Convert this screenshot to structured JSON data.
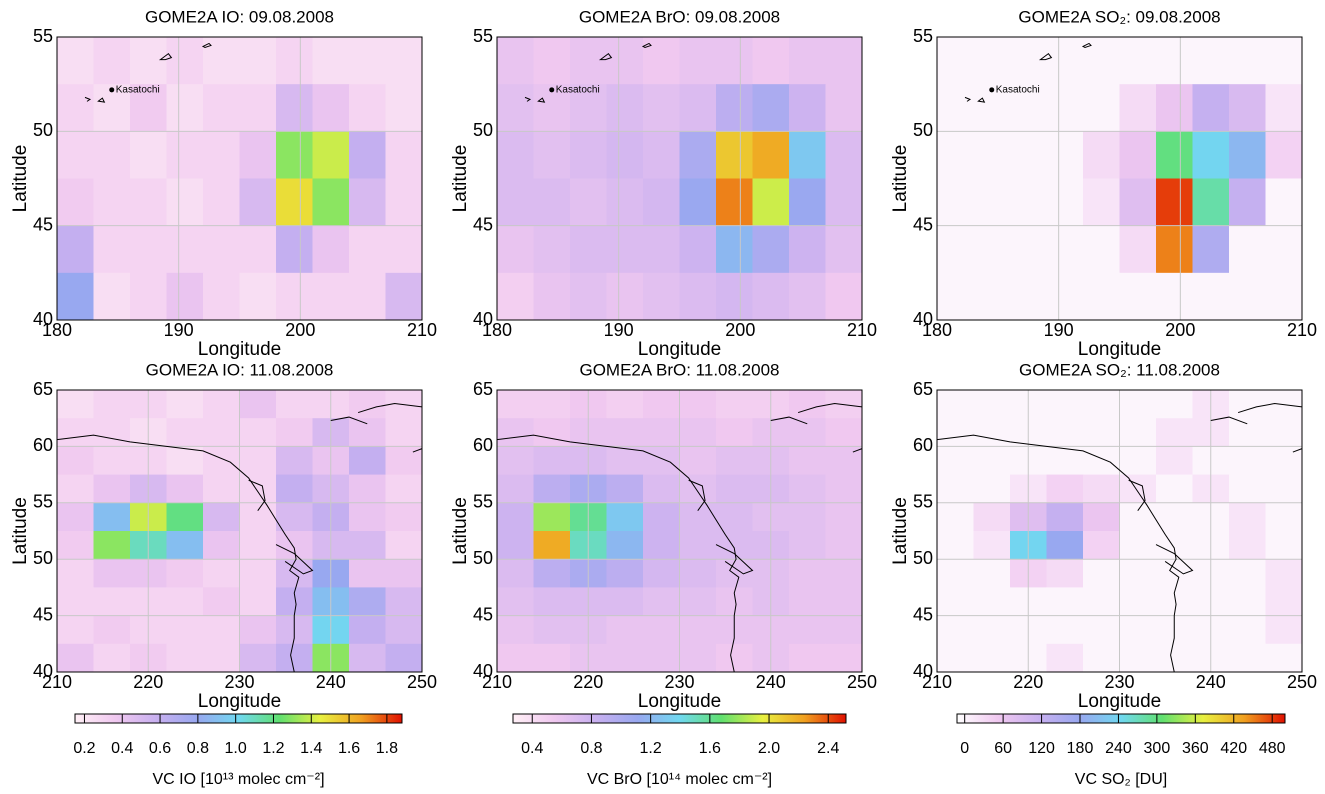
{
  "chart_data": [
    {
      "type": "heatmap",
      "title": "GOME2A IO: 09.08.2008",
      "xlabel": "Longitude",
      "ylabel": "Latitude",
      "xlim": [
        180,
        210
      ],
      "ylim": [
        40,
        55
      ],
      "xticks": [
        180,
        190,
        200,
        210
      ],
      "yticks": [
        40,
        45,
        50,
        55
      ],
      "grid": true,
      "annotations": [
        {
          "text": "Kasatochi",
          "x": 184.5,
          "y": 52.2
        }
      ],
      "z": [
        [
          0.25,
          0.3,
          0.25,
          0.3,
          0.25,
          0.25,
          0.3,
          0.25,
          0.25,
          0.25
        ],
        [
          0.3,
          0.25,
          0.35,
          0.25,
          0.3,
          0.3,
          0.5,
          0.4,
          0.3,
          0.25
        ],
        [
          0.3,
          0.3,
          0.25,
          0.3,
          0.3,
          0.4,
          1.3,
          1.4,
          0.6,
          0.3
        ],
        [
          0.35,
          0.3,
          0.3,
          0.25,
          0.3,
          0.5,
          1.5,
          1.3,
          0.5,
          0.3
        ],
        [
          0.6,
          0.3,
          0.3,
          0.3,
          0.3,
          0.3,
          0.6,
          0.4,
          0.3,
          0.3
        ],
        [
          0.8,
          0.25,
          0.3,
          0.4,
          0.3,
          0.25,
          0.3,
          0.3,
          0.3,
          0.5
        ]
      ]
    },
    {
      "type": "heatmap",
      "title": "GOME2A BrO: 09.08.2008",
      "xlabel": "Longitude",
      "ylabel": "Latitude",
      "xlim": [
        180,
        210
      ],
      "ylim": [
        40,
        55
      ],
      "xticks": [
        180,
        190,
        200,
        210
      ],
      "yticks": [
        40,
        45,
        50,
        55
      ],
      "grid": true,
      "annotations": [
        {
          "text": "Kasatochi",
          "x": 184.5,
          "y": 52.2
        }
      ],
      "z": [
        [
          0.6,
          0.55,
          0.6,
          0.6,
          0.55,
          0.6,
          0.6,
          0.55,
          0.6,
          0.6
        ],
        [
          0.65,
          0.6,
          0.65,
          0.7,
          0.65,
          0.7,
          0.9,
          1.0,
          0.8,
          0.6
        ],
        [
          0.7,
          0.65,
          0.7,
          0.75,
          0.7,
          1.0,
          2.1,
          2.2,
          1.3,
          0.7
        ],
        [
          0.7,
          0.7,
          0.65,
          0.7,
          0.75,
          1.1,
          2.3,
          1.9,
          1.1,
          0.7
        ],
        [
          0.6,
          0.65,
          0.7,
          0.7,
          0.7,
          0.8,
          1.2,
          1.0,
          0.8,
          0.65
        ],
        [
          0.5,
          0.6,
          0.65,
          0.6,
          0.65,
          0.7,
          0.75,
          0.7,
          0.65,
          0.55
        ]
      ]
    },
    {
      "type": "heatmap",
      "title": "GOME2A SO₂: 09.08.2008",
      "xlabel": "Longitude",
      "ylabel": "Latitude",
      "xlim": [
        180,
        210
      ],
      "ylim": [
        40,
        55
      ],
      "xticks": [
        180,
        190,
        200,
        210
      ],
      "yticks": [
        40,
        45,
        50,
        55
      ],
      "grid": true,
      "annotations": [
        {
          "text": "Kasatochi",
          "x": 184.5,
          "y": 52.2
        }
      ],
      "z": [
        [
          0,
          0,
          0,
          0,
          0,
          0,
          0,
          0,
          0,
          0
        ],
        [
          0,
          0,
          0,
          0,
          0,
          30,
          60,
          120,
          90,
          20
        ],
        [
          0,
          0,
          0,
          0,
          30,
          60,
          300,
          240,
          200,
          40
        ],
        [
          0,
          0,
          0,
          0,
          20,
          80,
          480,
          280,
          120,
          0
        ],
        [
          0,
          0,
          0,
          0,
          0,
          30,
          450,
          150,
          0,
          0
        ],
        [
          0,
          0,
          0,
          0,
          0,
          0,
          0,
          0,
          0,
          0
        ]
      ]
    },
    {
      "type": "heatmap",
      "title": "GOME2A IO: 11.08.2008",
      "xlabel": "Longitude",
      "ylabel": "Latitude",
      "xlim": [
        210,
        250
      ],
      "ylim": [
        40,
        65
      ],
      "xticks": [
        210,
        220,
        230,
        240,
        250
      ],
      "yticks": [
        40,
        45,
        50,
        55,
        60,
        65
      ],
      "grid": true,
      "colorbar": {
        "label": "VC IO [10¹³ molec cm⁻²]",
        "lim": [
          0.15,
          1.88
        ],
        "ticks": [
          0.2,
          0.4,
          0.6,
          0.8,
          {
            "value": 1,
            "label": "1.0"
          },
          1.2,
          1.4,
          1.6,
          1.8
        ],
        "colormap": [
          "#fff0f6",
          "#f0c8f0",
          "#c8b0f0",
          "#98a8f0",
          "#70d8f0",
          "#60e070",
          "#e8f040",
          "#f0a020",
          "#e01000"
        ]
      },
      "z": [
        [
          0.25,
          0.3,
          0.3,
          0.25,
          0.3,
          0.4,
          0.3,
          0.3,
          0.35,
          0.3
        ],
        [
          0.3,
          0.3,
          0.25,
          0.3,
          0.3,
          0.3,
          0.35,
          0.5,
          0.4,
          0.3
        ],
        [
          0.35,
          0.3,
          0.3,
          0.25,
          0.3,
          0.3,
          0.5,
          0.4,
          0.6,
          0.35
        ],
        [
          0.3,
          0.4,
          0.5,
          0.4,
          0.3,
          0.3,
          0.6,
          0.5,
          0.4,
          0.3
        ],
        [
          0.4,
          0.9,
          1.4,
          1.2,
          0.5,
          0.3,
          0.5,
          0.6,
          0.4,
          0.35
        ],
        [
          0.35,
          1.3,
          1.1,
          0.9,
          0.4,
          0.3,
          0.4,
          0.5,
          0.5,
          0.3
        ],
        [
          0.3,
          0.4,
          0.4,
          0.35,
          0.3,
          0.3,
          0.5,
          0.8,
          0.4,
          0.4
        ],
        [
          0.3,
          0.3,
          0.3,
          0.3,
          0.35,
          0.3,
          0.6,
          0.9,
          0.7,
          0.5
        ],
        [
          0.3,
          0.35,
          0.3,
          0.3,
          0.3,
          0.4,
          0.5,
          1.0,
          0.6,
          0.5
        ],
        [
          0.4,
          0.3,
          0.35,
          0.3,
          0.3,
          0.5,
          0.6,
          1.3,
          0.5,
          0.6
        ]
      ]
    },
    {
      "type": "heatmap",
      "title": "GOME2A BrO: 11.08.2008",
      "xlabel": "Longitude",
      "ylabel": "Latitude",
      "xlim": [
        210,
        250
      ],
      "ylim": [
        40,
        65
      ],
      "xticks": [
        210,
        220,
        230,
        240,
        250
      ],
      "yticks": [
        40,
        45,
        50,
        55,
        60,
        65
      ],
      "grid": true,
      "colorbar": {
        "label": "VC BrO [10¹⁴ molec cm⁻²]",
        "lim": [
          0.27,
          2.52
        ],
        "ticks": [
          0.4,
          0.8,
          1.2,
          1.6,
          {
            "value": 2,
            "label": "2.0"
          },
          2.4
        ],
        "colormap": [
          "#fff0f6",
          "#f0c8f0",
          "#c8b0f0",
          "#98a8f0",
          "#70d8f0",
          "#60e070",
          "#e8f040",
          "#f0a020",
          "#e01000"
        ]
      },
      "z": [
        [
          0.5,
          0.5,
          0.55,
          0.5,
          0.55,
          0.55,
          0.5,
          0.5,
          0.55,
          0.5
        ],
        [
          0.6,
          0.55,
          0.6,
          0.6,
          0.6,
          0.6,
          0.55,
          0.6,
          0.6,
          0.55
        ],
        [
          0.65,
          0.7,
          0.7,
          0.65,
          0.65,
          0.6,
          0.65,
          0.65,
          0.6,
          0.6
        ],
        [
          0.7,
          0.9,
          1.0,
          0.9,
          0.7,
          0.65,
          0.7,
          0.7,
          0.65,
          0.6
        ],
        [
          0.8,
          1.8,
          1.6,
          1.3,
          0.8,
          0.7,
          0.7,
          0.65,
          0.65,
          0.6
        ],
        [
          0.8,
          2.2,
          1.5,
          1.2,
          0.8,
          0.7,
          0.7,
          0.7,
          0.65,
          0.6
        ],
        [
          0.7,
          0.9,
          1.0,
          0.9,
          0.75,
          0.7,
          0.65,
          0.65,
          0.6,
          0.6
        ],
        [
          0.65,
          0.7,
          0.7,
          0.7,
          0.65,
          0.65,
          0.6,
          0.65,
          0.6,
          0.6
        ],
        [
          0.6,
          0.65,
          0.65,
          0.6,
          0.6,
          0.6,
          0.6,
          0.6,
          0.6,
          0.6
        ],
        [
          0.55,
          0.55,
          0.6,
          0.6,
          0.6,
          0.6,
          0.55,
          0.6,
          0.55,
          0.55
        ]
      ]
    },
    {
      "type": "heatmap",
      "title": "GOME2A SO₂: 11.08.2008",
      "xlabel": "Longitude",
      "ylabel": "Latitude",
      "xlim": [
        210,
        250
      ],
      "ylim": [
        40,
        65
      ],
      "xticks": [
        210,
        220,
        230,
        240,
        250
      ],
      "yticks": [
        40,
        45,
        50,
        55,
        60,
        65
      ],
      "grid": true,
      "colorbar": {
        "label": "VC SO₂ [DU]",
        "lim": [
          -12,
          500
        ],
        "ticks": [
          0,
          60,
          120,
          180,
          240,
          300,
          360,
          420,
          480
        ],
        "colormap": [
          "#ffffff",
          "#f0c8f0",
          "#c8b0f0",
          "#98a8f0",
          "#70d8f0",
          "#60e070",
          "#e8f040",
          "#f0a020",
          "#e01000"
        ]
      },
      "z": [
        [
          0,
          0,
          0,
          0,
          0,
          0,
          0,
          20,
          0,
          0
        ],
        [
          0,
          0,
          0,
          0,
          0,
          0,
          20,
          20,
          0,
          0
        ],
        [
          0,
          0,
          0,
          0,
          0,
          0,
          20,
          0,
          0,
          0
        ],
        [
          0,
          0,
          20,
          40,
          30,
          20,
          0,
          20,
          0,
          0
        ],
        [
          0,
          30,
          80,
          120,
          60,
          0,
          0,
          0,
          20,
          0
        ],
        [
          0,
          20,
          240,
          180,
          40,
          0,
          0,
          0,
          20,
          0
        ],
        [
          0,
          0,
          40,
          30,
          0,
          0,
          0,
          0,
          0,
          20
        ],
        [
          0,
          0,
          0,
          0,
          0,
          0,
          0,
          0,
          0,
          20
        ],
        [
          0,
          0,
          0,
          0,
          0,
          0,
          0,
          0,
          0,
          20
        ],
        [
          0,
          0,
          0,
          20,
          0,
          0,
          0,
          0,
          0,
          0
        ]
      ]
    }
  ]
}
